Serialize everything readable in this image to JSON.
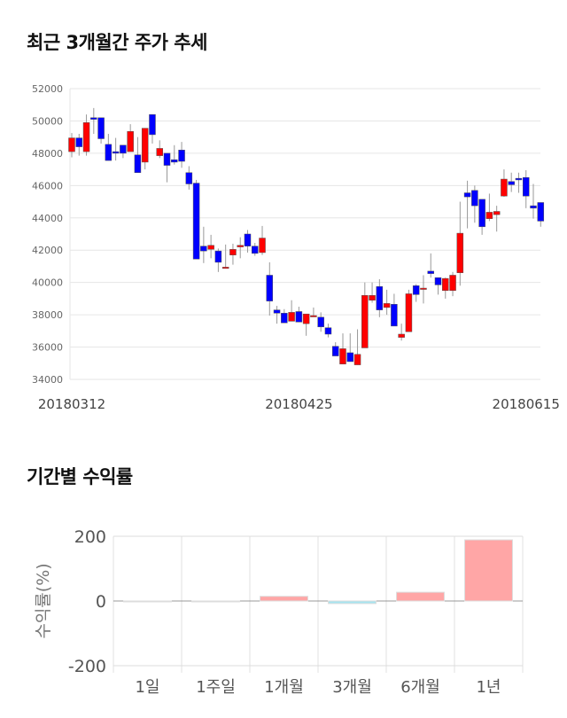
{
  "chart_data": [
    {
      "type": "candlestick",
      "title": "최근 3개월간 주가 추세",
      "ylim": [
        34000,
        52000
      ],
      "yticks": [
        34000,
        36000,
        38000,
        40000,
        42000,
        44000,
        46000,
        48000,
        50000,
        52000
      ],
      "grid": true,
      "up_color": "#ff0000",
      "down_color": "#0000ff",
      "xtick_labels": [
        {
          "index": 0,
          "label": "20180312"
        },
        {
          "index": 31,
          "label": "20180425"
        },
        {
          "index": 62,
          "label": "20180615"
        }
      ],
      "ohlc": [
        [
          48100,
          49250,
          47750,
          48950
        ],
        [
          48950,
          49200,
          47850,
          48400
        ],
        [
          48100,
          50400,
          47850,
          49900
        ],
        [
          50200,
          50800,
          49200,
          50100
        ],
        [
          50200,
          50200,
          48600,
          48900
        ],
        [
          48550,
          49200,
          47550,
          47550
        ],
        [
          48100,
          48950,
          47550,
          48000
        ],
        [
          48500,
          48500,
          47700,
          48000
        ],
        [
          48100,
          49800,
          48100,
          49350
        ],
        [
          47900,
          49000,
          46800,
          46800
        ],
        [
          47450,
          49550,
          47000,
          49550
        ],
        [
          50400,
          50400,
          48600,
          49150
        ],
        [
          47850,
          48800,
          47700,
          48300
        ],
        [
          48000,
          48000,
          46200,
          47250
        ],
        [
          47600,
          48500,
          47300,
          47450
        ],
        [
          48200,
          48700,
          47100,
          47500
        ],
        [
          46800,
          47200,
          45750,
          46100
        ],
        [
          46150,
          46350,
          41450,
          41450
        ],
        [
          42250,
          43450,
          41200,
          41950
        ],
        [
          42050,
          42950,
          41500,
          42300
        ],
        [
          41950,
          42100,
          40650,
          41250
        ],
        [
          40900,
          42350,
          40900,
          40950
        ],
        [
          41700,
          42400,
          41100,
          42050
        ],
        [
          42200,
          42800,
          41500,
          42300
        ],
        [
          43000,
          43250,
          41850,
          42250
        ],
        [
          42250,
          42450,
          41650,
          41800
        ],
        [
          41850,
          43500,
          41700,
          42750
        ],
        [
          40450,
          41250,
          37950,
          38850
        ],
        [
          38300,
          38550,
          37450,
          38100
        ],
        [
          38100,
          38350,
          37500,
          37500
        ],
        [
          37600,
          38900,
          37600,
          38150
        ],
        [
          38200,
          38500,
          37550,
          37550
        ],
        [
          37450,
          38050,
          36700,
          38050
        ],
        [
          37900,
          38450,
          37900,
          37950
        ],
        [
          37850,
          38150,
          36950,
          37250
        ],
        [
          37200,
          37450,
          36600,
          36800
        ],
        [
          36050,
          36300,
          35450,
          35450
        ],
        [
          34950,
          36850,
          34950,
          35900
        ],
        [
          35650,
          36850,
          35100,
          35100
        ],
        [
          34900,
          37100,
          34900,
          35550
        ],
        [
          35950,
          40000,
          35950,
          39200
        ],
        [
          38900,
          40000,
          38750,
          39200
        ],
        [
          39750,
          40200,
          37850,
          38300
        ],
        [
          38450,
          39550,
          38000,
          38700
        ],
        [
          38650,
          39300,
          37300,
          37300
        ],
        [
          36600,
          37450,
          36400,
          36800
        ],
        [
          36950,
          39550,
          36950,
          39300
        ],
        [
          39800,
          39900,
          38800,
          39250
        ],
        [
          39650,
          40450,
          38700,
          39650
        ],
        [
          40700,
          41800,
          40300,
          40550
        ],
        [
          40300,
          40300,
          39250,
          39850
        ],
        [
          39500,
          40300,
          39000,
          40250
        ],
        [
          39500,
          40650,
          39150,
          40450
        ],
        [
          40600,
          45000,
          39800,
          43050
        ],
        [
          45550,
          46300,
          43350,
          45300
        ],
        [
          45700,
          46000,
          43700,
          44750
        ],
        [
          45150,
          45150,
          42950,
          43450
        ],
        [
          43950,
          45500,
          43800,
          44350
        ],
        [
          44200,
          44750,
          43150,
          44400
        ],
        [
          45350,
          47000,
          45300,
          46400
        ],
        [
          46250,
          46800,
          45600,
          46050
        ],
        [
          46450,
          46800,
          45550,
          46350
        ],
        [
          46500,
          46950,
          44600,
          45350
        ],
        [
          44750,
          46100,
          43950,
          44600
        ],
        [
          44950,
          44950,
          43450,
          43800
        ]
      ]
    },
    {
      "type": "bar",
      "title": "기간별 수익률",
      "ylabel": "수익률(%)",
      "ylim": [
        -200,
        200
      ],
      "yticks": [
        -200,
        0,
        200
      ],
      "grid": true,
      "categories": [
        "1일",
        "1주일",
        "1개월",
        "3개월",
        "6개월",
        "1년"
      ],
      "values": [
        -0.5,
        -2,
        14.5,
        -8,
        27,
        189
      ],
      "positive_color": "#ffa6a6",
      "negative_color": "#a6e4f0"
    }
  ]
}
